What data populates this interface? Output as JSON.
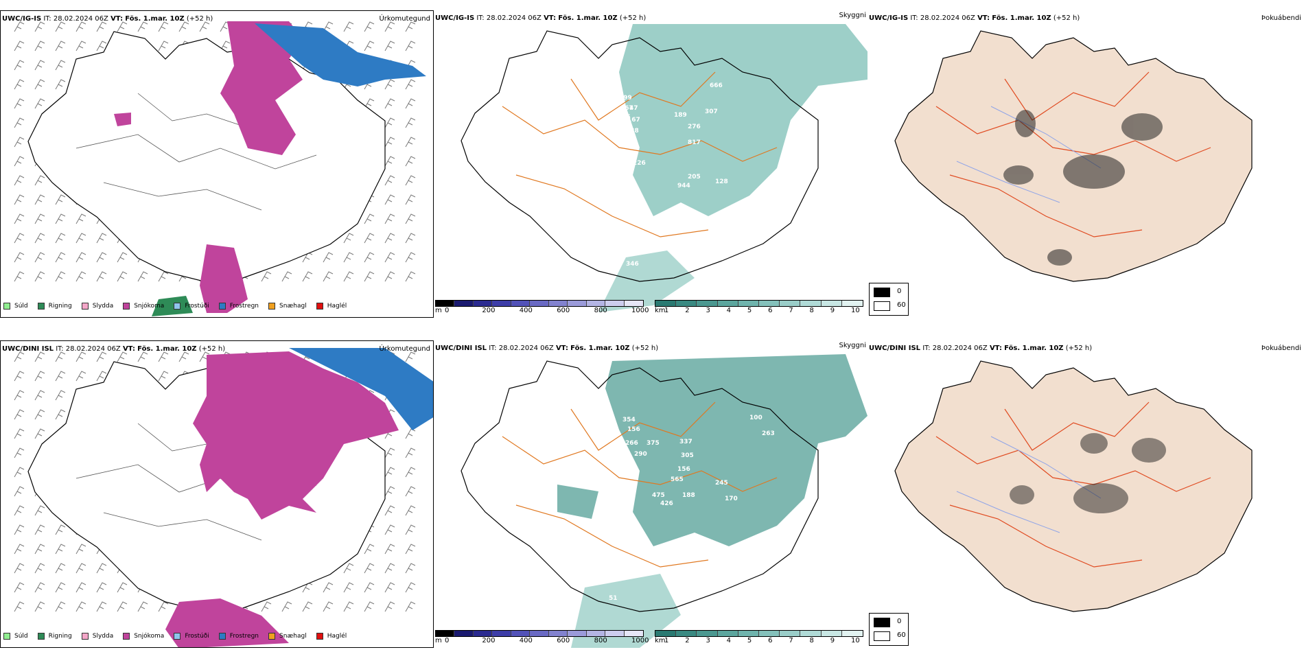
{
  "rows": [
    {
      "model": "UWC/IG-IS",
      "issue": "IT: 28.02.2024 06Z",
      "valid_label": "VT:",
      "valid": "Fös. 1.mar. 10Z",
      "lead": "(+52 h)",
      "cloud_numbers": [
        "299",
        "167",
        "47",
        "475",
        "167",
        "238",
        "189",
        "276",
        "307",
        "817",
        "666",
        "226",
        "205",
        "944",
        "128",
        "123",
        "346"
      ]
    },
    {
      "model": "UWC/DINI ISL",
      "issue": "IT: 28.02.2024 06Z",
      "valid_label": "VT:",
      "valid": "Fös. 1.mar. 10Z",
      "lead": "(+52 h)",
      "cloud_numbers": [
        "354",
        "156",
        "266",
        "290",
        "375",
        "337",
        "305",
        "156",
        "565",
        "475",
        "188",
        "245",
        "170",
        "301",
        "426",
        "100",
        "263",
        "51"
      ]
    }
  ],
  "panel_titles": {
    "precip": "Úrkomutegund",
    "visibility": "Skyggni",
    "fog": "Þokuábendi"
  },
  "precip_legend": [
    {
      "label": "Súld",
      "color": "#90ee90"
    },
    {
      "label": "Rigning",
      "color": "#2e8b57"
    },
    {
      "label": "Slydda",
      "color": "#f4a6c8"
    },
    {
      "label": "Snjókoma",
      "color": "#c0449c"
    },
    {
      "label": "Frostúði",
      "color": "#8ec5ec"
    },
    {
      "label": "Frostregn",
      "color": "#2e7bc4"
    },
    {
      "label": "Snæhagl",
      "color": "#f0a020"
    },
    {
      "label": "Haglél",
      "color": "#e01010"
    }
  ],
  "ceiling_scale": {
    "unit": "m",
    "ticks": [
      "0",
      "200",
      "400",
      "600",
      "800",
      "1000"
    ],
    "colors": [
      "#000000",
      "#1a1a70",
      "#2a2a90",
      "#3d3da8",
      "#5252b8",
      "#6a6ac4",
      "#8282cf",
      "#9b9bda",
      "#b4b4e4",
      "#cdcdee",
      "#e6e6f7"
    ]
  },
  "visibility_scale": {
    "unit": "km",
    "ticks": [
      "1",
      "2",
      "3",
      "4",
      "5",
      "6",
      "7",
      "8",
      "9",
      "10"
    ],
    "colors": [
      "#2a7a72",
      "#3a8a82",
      "#4b9890",
      "#5ca69e",
      "#6fb4ad",
      "#84c1bb",
      "#9acec9",
      "#b0dbd7",
      "#c8e7e4",
      "#e2f3f1"
    ]
  },
  "fog_legend": {
    "values": [
      "0",
      "60"
    ],
    "colors": [
      "#000000",
      "#ffffff"
    ]
  }
}
